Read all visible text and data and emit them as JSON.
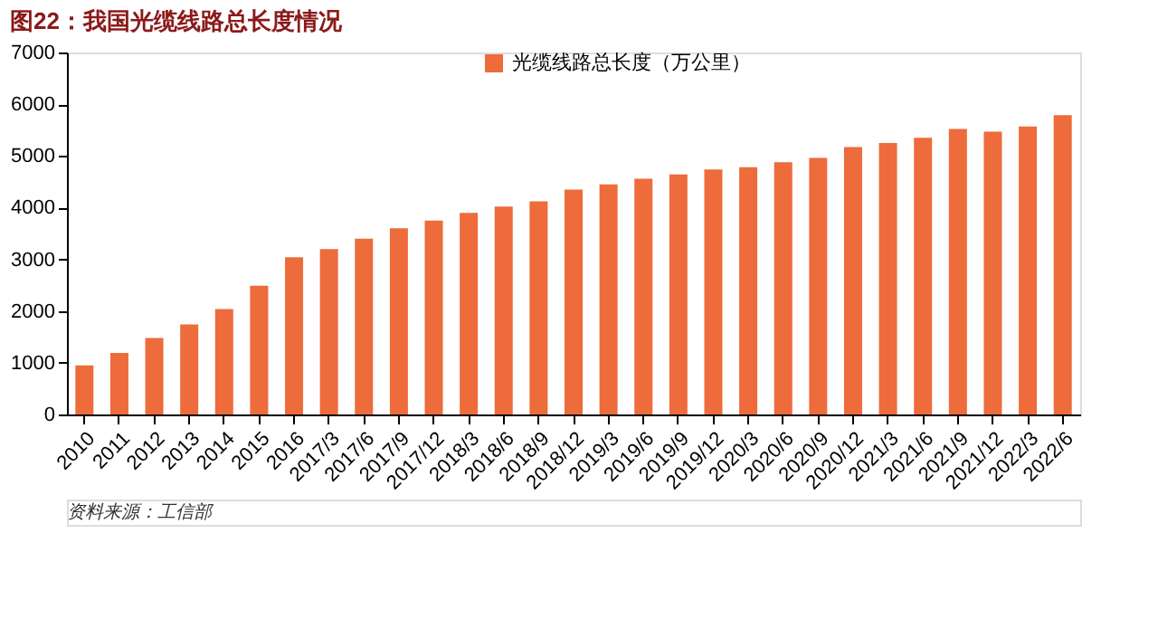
{
  "chart_data": {
    "type": "bar",
    "title": "图22：我国光缆线路总长度情况",
    "categories": [
      "2010",
      "2011",
      "2012",
      "2013",
      "2014",
      "2015",
      "2016",
      "2017/3",
      "2017/6",
      "2017/9",
      "2017/12",
      "2018/3",
      "2018/6",
      "2018/9",
      "2018/12",
      "2019/3",
      "2019/6",
      "2019/9",
      "2019/12",
      "2020/3",
      "2020/6",
      "2020/9",
      "2020/12",
      "2021/3",
      "2021/6",
      "2021/9",
      "2021/12",
      "2022/3",
      "2022/6"
    ],
    "series": [
      {
        "name": "光缆线路总长度（万公里）",
        "color": "#ee6b3b",
        "values": [
          950,
          1190,
          1480,
          1740,
          2040,
          2490,
          3040,
          3200,
          3400,
          3600,
          3750,
          3900,
          4020,
          4120,
          4350,
          4450,
          4560,
          4640,
          4740,
          4780,
          4880,
          4960,
          5170,
          5250,
          5350,
          5520,
          5470,
          5570,
          5790
        ]
      }
    ],
    "ylim": [
      0,
      7000
    ],
    "yticks": [
      0,
      1000,
      2000,
      3000,
      4000,
      5000,
      6000,
      7000
    ],
    "grid": false,
    "legend": "top",
    "annotations": [
      "资料来源：工信部"
    ]
  }
}
